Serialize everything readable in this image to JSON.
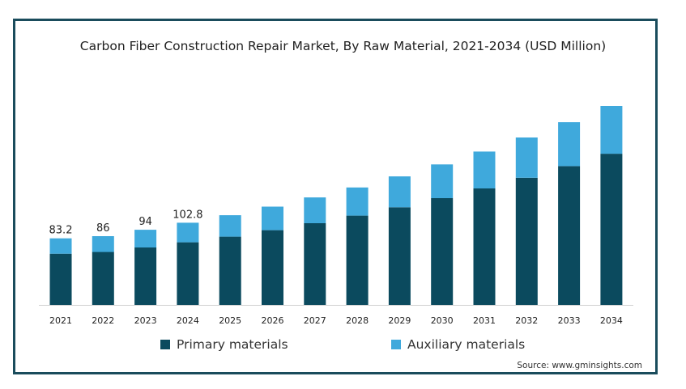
{
  "chart_data": {
    "type": "bar",
    "stacked": true,
    "title": "Carbon Fiber Construction Repair Market, By Raw Material, 2021-2034 (USD Million)",
    "categories": [
      "2021",
      "2022",
      "2023",
      "2024",
      "2025",
      "2026",
      "2027",
      "2028",
      "2029",
      "2030",
      "2031",
      "2032",
      "2033",
      "2034"
    ],
    "series": [
      {
        "name": "Primary materials",
        "color": "#0b4a5e",
        "values": [
          64.0,
          66.2,
          71.9,
          78.3,
          85.4,
          93.5,
          102.1,
          111.7,
          122.1,
          133.5,
          145.7,
          159.0,
          173.6,
          189.0
        ]
      },
      {
        "name": "Auxiliary materials",
        "color": "#3fa9dc",
        "values": [
          19.2,
          19.8,
          22.1,
          24.5,
          26.8,
          29.4,
          32.3,
          35.2,
          38.6,
          42.2,
          46.1,
          50.4,
          54.9,
          59.8
        ]
      }
    ],
    "data_labels": [
      "83.2",
      "86",
      "94",
      "102.8",
      "",
      "",
      "",
      "",
      "",
      "",
      "",
      "",
      "",
      ""
    ],
    "xlabel": "",
    "ylabel": "",
    "ylim": [
      0,
      260
    ],
    "grid": false,
    "legend_position": "bottom"
  },
  "source_text": "Source: www.gminsights.com"
}
